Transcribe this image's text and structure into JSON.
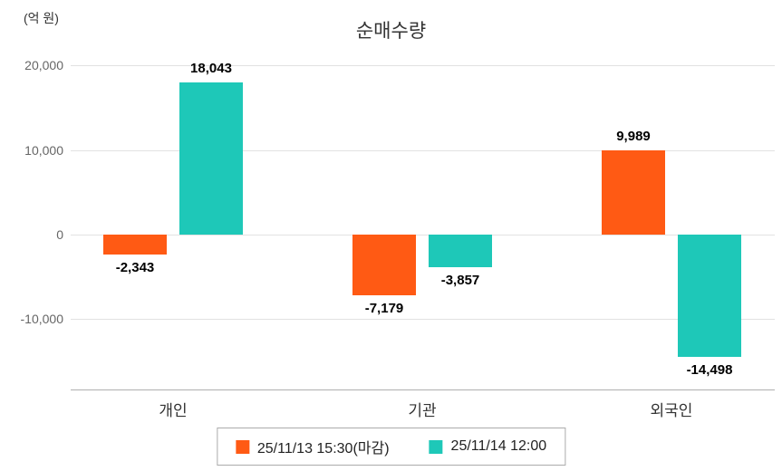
{
  "chart": {
    "title": "순매수량",
    "unit": "(억 원)"
  },
  "chart_data": {
    "type": "bar",
    "title": "순매수량",
    "unit_label": "(억 원)",
    "categories": [
      "개인",
      "기관",
      "외국인"
    ],
    "series": [
      {
        "name": "25/11/13 15:30(마감)",
        "color": "#ff5a14",
        "values": [
          -2343,
          -7179,
          9989
        ],
        "labels": [
          "-2,343",
          "-7,179",
          "9,989"
        ]
      },
      {
        "name": "25/11/14 12:00",
        "color": "#1ec8b8",
        "values": [
          18043,
          -3857,
          -14498
        ],
        "labels": [
          "18,043",
          "-3,857",
          "-14,498"
        ]
      }
    ],
    "y_ticks": [
      20000,
      10000,
      0,
      -10000
    ],
    "y_tick_labels": [
      "20,000",
      "10,000",
      "0",
      "-10,000"
    ],
    "ylim": [
      -16500,
      22000
    ],
    "grid": true,
    "legend_position": "bottom"
  }
}
